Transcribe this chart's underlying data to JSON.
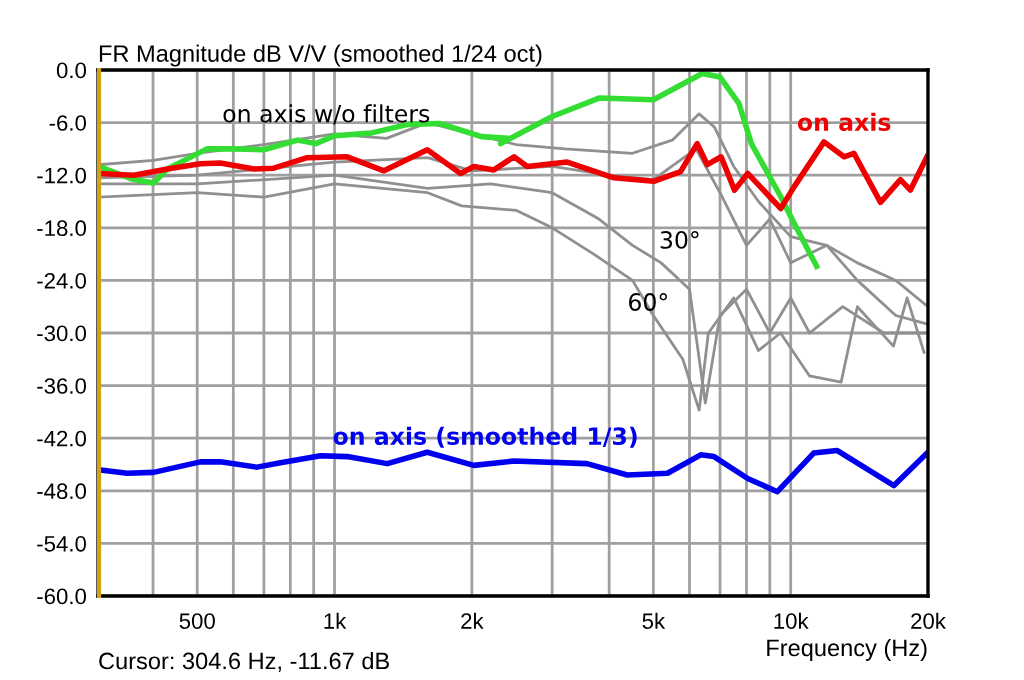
{
  "chart_data": {
    "type": "line",
    "title": "FR Magnitude dB V/V (smoothed 1/24 oct)",
    "xlabel": "Frequency (Hz)",
    "log": "x",
    "grid": true,
    "legend": false,
    "marker": "none",
    "line_style": "solid",
    "xlim": [
      303,
      20000
    ],
    "ylim": [
      -60,
      0
    ],
    "xticks": [
      {
        "value": 400,
        "label": null
      },
      500,
      {
        "value": 600,
        "label": null
      },
      {
        "value": 700,
        "label": null
      },
      {
        "value": 800,
        "label": null
      },
      {
        "value": 900,
        "label": null
      },
      {
        "value": 1000,
        "label": "1k"
      },
      {
        "value": 2000,
        "label": "2k"
      },
      {
        "value": 3000,
        "label": null
      },
      {
        "value": 4000,
        "label": null
      },
      {
        "value": 5000,
        "label": "5k"
      },
      {
        "value": 6000,
        "label": null
      },
      {
        "value": 7000,
        "label": null
      },
      {
        "value": 8000,
        "label": null
      },
      {
        "value": 9000,
        "label": null
      },
      {
        "value": 10000,
        "label": "10k"
      },
      {
        "value": 20000,
        "label": "20k"
      }
    ],
    "yticks": [
      {
        "value": 0,
        "label": "0.0"
      },
      {
        "value": -6,
        "label": "-6.0"
      },
      {
        "value": -12,
        "label": "-12.0"
      },
      {
        "value": -18,
        "label": "-18.0"
      },
      {
        "value": -24,
        "label": "-24.0"
      },
      {
        "value": -30,
        "label": "-30.0"
      },
      {
        "value": -36,
        "label": "-36.0"
      },
      {
        "value": -42,
        "label": "-42.0"
      },
      {
        "value": -48,
        "label": "-48.0"
      },
      {
        "value": -54,
        "label": "-54.0"
      },
      {
        "value": -60,
        "label": "-60.0"
      }
    ],
    "ref_lines": [
      {
        "axis": "x",
        "value": 304.6,
        "color": "#d4a017"
      }
    ],
    "series": [
      {
        "color": "#909090",
        "x": [
          304,
          400,
          500,
          700,
          1000,
          1300,
          1600,
          1900,
          2500,
          3200,
          4500,
          5500,
          6300,
          6800,
          7500,
          8500,
          10000,
          12000,
          14000,
          17000,
          20000
        ],
        "values": [
          -10.8,
          -10.3,
          -9.5,
          -8.5,
          -7.3,
          -7.8,
          -6.0,
          -7.0,
          -8.5,
          -9.0,
          -9.5,
          -8.0,
          -5.0,
          -6.5,
          -11,
          -15,
          -19,
          -20,
          -22,
          -24,
          -27
        ]
      },
      {
        "color": "#909090",
        "x": [
          304,
          500,
          1000,
          1600,
          2000,
          3000,
          4000,
          5000,
          6200,
          7000,
          8000,
          9000,
          10000,
          12000,
          14000,
          17000,
          20000
        ],
        "values": [
          -12.3,
          -12.0,
          -10.5,
          -10.0,
          -11.5,
          -11.0,
          -12.0,
          -12.5,
          -9.0,
          -14,
          -20,
          -17,
          -22,
          -20,
          -24,
          -28,
          -29
        ]
      },
      {
        "color": "#909090",
        "x": [
          304,
          500,
          1000,
          1600,
          2200,
          3000,
          3800,
          4500,
          5200,
          6000,
          6500,
          7000,
          8000,
          9000,
          10000,
          11000,
          13000,
          16000,
          20000
        ],
        "values": [
          -13.0,
          -13.0,
          -12.0,
          -13.5,
          -13.0,
          -14.0,
          -17,
          -20,
          -22,
          -25,
          -38,
          -28,
          -25,
          -30,
          -26,
          -30,
          -27,
          -30,
          -30
        ]
      },
      {
        "color": "#909090",
        "x": [
          304,
          500,
          700,
          1000,
          1600,
          1900,
          2500,
          3000,
          3700,
          4500,
          5000,
          5800,
          6300,
          6600,
          7500,
          8500,
          9500,
          11000,
          12900,
          14000,
          16800,
          18000,
          19600
        ],
        "values": [
          -14.5,
          -14.0,
          -14.5,
          -13.0,
          -14.0,
          -15.5,
          -16,
          -18,
          -21,
          -24,
          -28,
          -33,
          -38.8,
          -30,
          -26,
          -32,
          -30,
          -34.9,
          -35.6,
          -27,
          -31.5,
          -26,
          -32.2
        ]
      },
      {
        "name": "on axis w/o filters",
        "color": "#33dd33",
        "x": [
          304,
          363,
          401,
          430,
          525,
          600,
          700,
          830,
          910,
          1000,
          1200,
          1450,
          1700,
          2100,
          2400,
          2312,
          3000,
          3800,
          5000,
          6400,
          7000,
          7700,
          8200,
          9500,
          10180,
          11400
        ],
        "values": [
          -11.0,
          -12.5,
          -12.9,
          -11.3,
          -9.0,
          -9.0,
          -9.1,
          -8.0,
          -8.4,
          -7.5,
          -7.2,
          -6.2,
          -6.1,
          -7.6,
          -7.8,
          -8.4,
          -5.3,
          -3.2,
          -3.4,
          -0.4,
          -0.8,
          -3.8,
          -8.4,
          -14.4,
          -17.5,
          -22.4
        ]
      },
      {
        "name": "on axis",
        "color": "#ee0000",
        "x": [
          304,
          363,
          430,
          508,
          562,
          666,
          736,
          871,
          1066,
          1283,
          1597,
          1889,
          2020,
          2235,
          2474,
          2644,
          3237,
          4097,
          5010,
          5737,
          6238,
          6563,
          7040,
          7530,
          8050,
          9514,
          10180,
          11830,
          13090,
          13760,
          15740,
          17400,
          18300,
          19900
        ],
        "values": [
          -11.8,
          -12.0,
          -11.3,
          -10.7,
          -10.6,
          -11.3,
          -11.2,
          -10.0,
          -9.9,
          -11.5,
          -9.1,
          -11.8,
          -11.0,
          -11.4,
          -9.9,
          -11.0,
          -10.5,
          -12.3,
          -12.7,
          -11.6,
          -8.4,
          -10.8,
          -9.9,
          -13.7,
          -11.8,
          -15.8,
          -13.3,
          -8.2,
          -9.9,
          -9.5,
          -15.1,
          -12.5,
          -13.7,
          -9.9
        ]
      },
      {
        "name": "on axis (smoothed 1/3)",
        "color": "#0000ee",
        "x": [
          304,
          351,
          401,
          508,
          562,
          676,
          761,
          932,
          1066,
          1305,
          1597,
          2020,
          2474,
          3575,
          4384,
          5370,
          6350,
          6790,
          8050,
          9350,
          11230,
          12630,
          16840,
          19900
        ],
        "values": [
          -45.6,
          -46.0,
          -45.9,
          -44.7,
          -44.7,
          -45.3,
          -44.8,
          -44.0,
          -44.1,
          -44.9,
          -43.6,
          -45.1,
          -44.6,
          -44.9,
          -46.2,
          -46.0,
          -43.9,
          -44.1,
          -46.6,
          -48.1,
          -43.7,
          -43.4,
          -47.4,
          -43.7
        ]
      }
    ],
    "annotations": [
      "30°",
      "60°",
      "Cursor: 304.6 Hz, -11.67 dB"
    ]
  }
}
